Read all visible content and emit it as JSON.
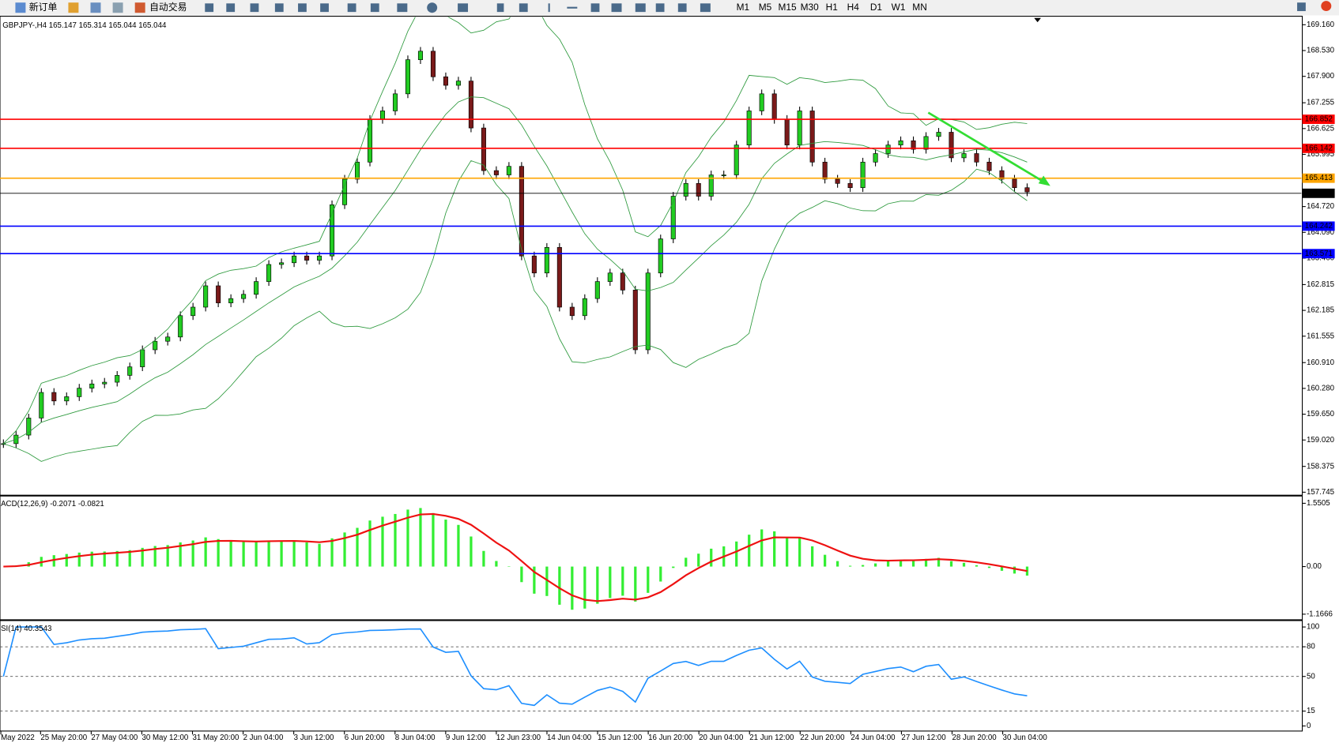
{
  "toolbar": {
    "new_order": "新订单",
    "auto_trading": "自动交易",
    "timeframes": [
      "M1",
      "M5",
      "M15",
      "M30",
      "H1",
      "H4",
      "D1",
      "W1",
      "MN"
    ]
  },
  "chart": {
    "header": "GBPJPY-,H4  165.147 165.314 165.044 165.044",
    "closes": [
      158.931,
      159.139,
      159.556,
      160.181,
      159.973,
      160.077,
      160.285,
      160.389,
      160.431,
      160.598,
      160.806,
      161.223,
      161.431,
      161.535,
      162.056,
      162.264,
      162.785,
      162.368,
      162.473,
      162.577,
      162.889,
      163.306,
      163.348,
      163.514,
      163.41,
      163.514,
      164.764,
      165.389,
      165.806,
      166.848,
      167.056,
      167.473,
      168.306,
      168.514,
      167.889,
      167.681,
      167.785,
      166.639,
      165.598,
      165.493,
      165.702,
      163.514,
      163.098,
      163.723,
      162.264,
      162.056,
      162.473,
      162.889,
      163.098,
      162.681,
      161.223,
      163.098,
      163.931,
      164.973,
      165.285,
      164.973,
      165.493,
      165.493,
      166.223,
      167.056,
      167.473,
      166.848,
      166.223,
      167.056,
      165.806,
      165.389,
      165.285,
      165.181,
      165.806,
      166.014,
      166.223,
      166.327,
      166.118,
      166.431,
      166.535,
      165.91,
      166.014,
      165.806,
      165.598,
      165.389,
      165.181,
      165.077
    ],
    "price_ticks": [
      {
        "value": 169.16,
        "label": "169.160"
      },
      {
        "value": 168.53,
        "label": "168.530"
      },
      {
        "value": 167.9,
        "label": "167.900"
      },
      167.255,
      166.625,
      165.995,
      {
        "value": 164.72,
        "label": "164.720"
      },
      {
        "value": 164.09,
        "label": "164.090"
      },
      {
        "value": 163.46,
        "label": "163.460"
      },
      162.815,
      162.185,
      161.555,
      {
        "value": 160.91,
        "label": "160.910"
      },
      {
        "value": 160.28,
        "label": "160.280"
      },
      {
        "value": 159.65,
        "label": "159.650"
      },
      {
        "value": 159.02,
        "label": "159.020"
      },
      158.375,
      157.745
    ],
    "levels": [
      {
        "value": 166.852,
        "color": "#ff0000"
      },
      {
        "value": 166.142,
        "color": "#ff0000"
      },
      {
        "value": 165.413,
        "color": "#ffa500"
      },
      {
        "value": 165.044,
        "color": "#000000"
      },
      {
        "value": 164.242,
        "color": "#0000ff"
      },
      {
        "value": 163.571,
        "color": "#0000ff"
      }
    ],
    "time_labels": [
      "May 2022",
      "25 May 20:00",
      "27 May 04:00",
      "30 May 12:00",
      "31 May 20:00",
      "2 Jun 04:00",
      "3 Jun 12:00",
      "6 Jun 20:00",
      "8 Jun 04:00",
      "9 Jun 12:00",
      "12 Jun 23:00",
      "14 Jun 04:00",
      "15 Jun 12:00",
      "16 Jun 20:00",
      "20 Jun 04:00",
      "21 Jun 12:00",
      "22 Jun 20:00",
      "24 Jun 04:00",
      "27 Jun 12:00",
      "28 Jun 20:00",
      "30 Jun 04:00"
    ]
  },
  "macd": {
    "header": "ACD(12,26,9) -0.2071 -0.0821",
    "ticks": [
      1.5505,
      {
        "value": 0,
        "label": "0.00"
      },
      -1.1666
    ]
  },
  "rsi": {
    "header": "SI(14) 40.3543",
    "ticks": [
      100,
      80,
      50,
      15,
      0
    ]
  }
}
